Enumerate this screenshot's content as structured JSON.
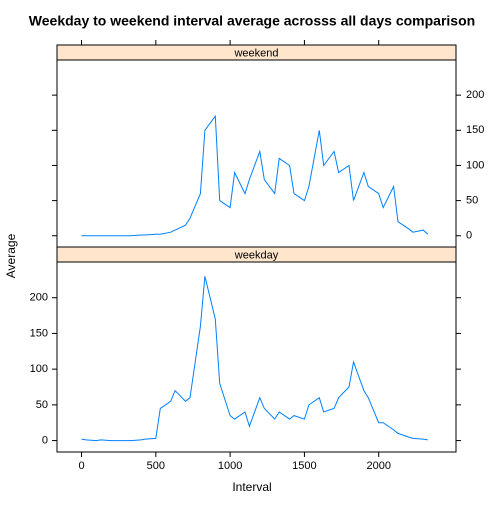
{
  "chart_data": {
    "type": "line",
    "title": "Weekday to weekend interval average acrosss all days comparison",
    "xlabel": "Interval",
    "ylabel": "Average",
    "color": "#0080ff",
    "strip_color": "#ffe5cc",
    "xlim": [
      -165,
      2520
    ],
    "xticks": [
      0,
      500,
      1000,
      1500,
      2000
    ],
    "ylim": [
      -16,
      250
    ],
    "yticks": [
      0,
      50,
      100,
      150,
      200
    ],
    "series": [
      {
        "name": "weekend",
        "x": [
          0,
          30,
          100,
          130,
          200,
          230,
          300,
          330,
          400,
          430,
          500,
          530,
          600,
          630,
          700,
          730,
          800,
          830,
          900,
          930,
          1000,
          1030,
          1100,
          1130,
          1200,
          1230,
          1300,
          1330,
          1400,
          1430,
          1500,
          1530,
          1600,
          1630,
          1700,
          1730,
          1800,
          1830,
          1900,
          1930,
          2000,
          2030,
          2100,
          2130,
          2200,
          2230,
          2300,
          2330
        ],
        "values": [
          0,
          0,
          0,
          0,
          0,
          0,
          0,
          0,
          1,
          1,
          2,
          2,
          5,
          8,
          15,
          25,
          60,
          150,
          170,
          50,
          40,
          90,
          60,
          80,
          120,
          80,
          60,
          110,
          100,
          60,
          50,
          70,
          150,
          100,
          120,
          90,
          100,
          50,
          90,
          70,
          60,
          40,
          70,
          20,
          10,
          5,
          8,
          2
        ]
      },
      {
        "name": "weekday",
        "x": [
          0,
          30,
          100,
          130,
          200,
          230,
          300,
          330,
          400,
          430,
          500,
          530,
          600,
          630,
          700,
          730,
          800,
          830,
          900,
          930,
          1000,
          1030,
          1100,
          1130,
          1200,
          1230,
          1300,
          1330,
          1400,
          1430,
          1500,
          1530,
          1600,
          1630,
          1700,
          1730,
          1800,
          1830,
          1900,
          1930,
          2000,
          2030,
          2100,
          2130,
          2200,
          2230,
          2300,
          2330
        ],
        "values": [
          2,
          1,
          0,
          1,
          0,
          0,
          0,
          0,
          1,
          2,
          3,
          45,
          55,
          70,
          55,
          60,
          160,
          230,
          170,
          80,
          35,
          30,
          40,
          20,
          60,
          45,
          30,
          40,
          30,
          35,
          30,
          50,
          60,
          40,
          45,
          60,
          75,
          110,
          70,
          60,
          25,
          25,
          15,
          10,
          5,
          3,
          2,
          1
        ]
      }
    ]
  }
}
